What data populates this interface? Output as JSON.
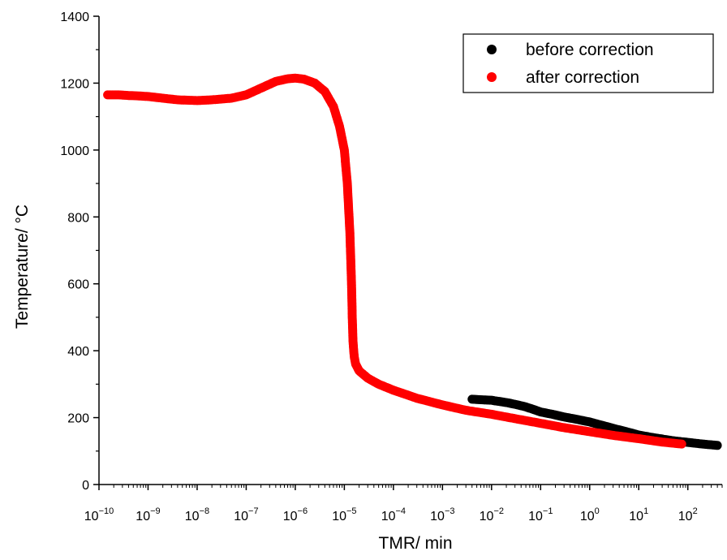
{
  "chart_data": {
    "type": "scatter",
    "xscale": "log",
    "xlabel": "TMR/ min",
    "ylabel": "Temperature/ °C",
    "xlim": [
      1e-10,
      500
    ],
    "ylim": [
      0,
      1400
    ],
    "yticks": [
      0,
      200,
      400,
      600,
      800,
      1000,
      1200,
      1400
    ],
    "ytick_labels": [
      "0",
      "200",
      "400",
      "600",
      "800",
      "1000",
      "1200",
      "1400"
    ],
    "xticks": [
      1e-10,
      1e-09,
      1e-08,
      1e-07,
      1e-06,
      1e-05,
      0.0001,
      0.001,
      0.01,
      0.1,
      1,
      10,
      100
    ],
    "xtick_labels": [
      {
        "base": "10",
        "exp": "−10"
      },
      {
        "base": "10",
        "exp": "−9"
      },
      {
        "base": "10",
        "exp": "−8"
      },
      {
        "base": "10",
        "exp": "−7"
      },
      {
        "base": "10",
        "exp": "−6"
      },
      {
        "base": "10",
        "exp": "−5"
      },
      {
        "base": "10",
        "exp": "−4"
      },
      {
        "base": "10",
        "exp": "−3"
      },
      {
        "base": "10",
        "exp": "−2"
      },
      {
        "base": "10",
        "exp": "−1"
      },
      {
        "base": "10",
        "exp": "0"
      },
      {
        "base": "10",
        "exp": "1"
      },
      {
        "base": "10",
        "exp": "2"
      }
    ],
    "grid": false,
    "legend_position": "top-right",
    "series": [
      {
        "name": "before correction",
        "color": "#000000",
        "x": [
          0.004,
          0.007,
          0.01,
          0.012,
          0.015,
          0.02,
          0.03,
          0.05,
          0.08,
          0.1,
          0.2,
          0.3,
          0.5,
          1,
          2,
          3,
          5,
          10,
          20,
          50,
          100,
          200,
          400
        ],
        "y": [
          255,
          253,
          252,
          250,
          248,
          245,
          240,
          232,
          222,
          217,
          208,
          202,
          196,
          187,
          175,
          168,
          160,
          148,
          140,
          131,
          126,
          121,
          117
        ]
      },
      {
        "name": "after correction",
        "color": "#ff0000",
        "x": [
          1.5e-10,
          2.5e-10,
          4e-10,
          6e-10,
          1e-09,
          2e-09,
          4e-09,
          1e-08,
          2e-08,
          5e-08,
          1e-07,
          2e-07,
          4e-07,
          7e-07,
          1e-06,
          1.5e-06,
          2.5e-06,
          4e-06,
          6e-06,
          8e-06,
          1e-05,
          1.15e-05,
          1.3e-05,
          1.4e-05,
          1.45e-05,
          1.5e-05,
          1.55e-05,
          1.6e-05,
          1.7e-05,
          2e-05,
          3e-05,
          5e-05,
          0.0001,
          0.0003,
          0.001,
          0.003,
          0.01,
          0.03,
          0.1,
          0.3,
          1,
          3,
          10,
          30,
          75
        ],
        "y": [
          1165,
          1165,
          1163,
          1162,
          1160,
          1155,
          1150,
          1148,
          1150,
          1155,
          1165,
          1185,
          1205,
          1213,
          1215,
          1212,
          1200,
          1175,
          1130,
          1070,
          1000,
          900,
          750,
          600,
          500,
          430,
          400,
          380,
          360,
          340,
          318,
          300,
          282,
          258,
          238,
          222,
          210,
          197,
          183,
          170,
          158,
          147,
          137,
          127,
          121
        ]
      }
    ]
  }
}
